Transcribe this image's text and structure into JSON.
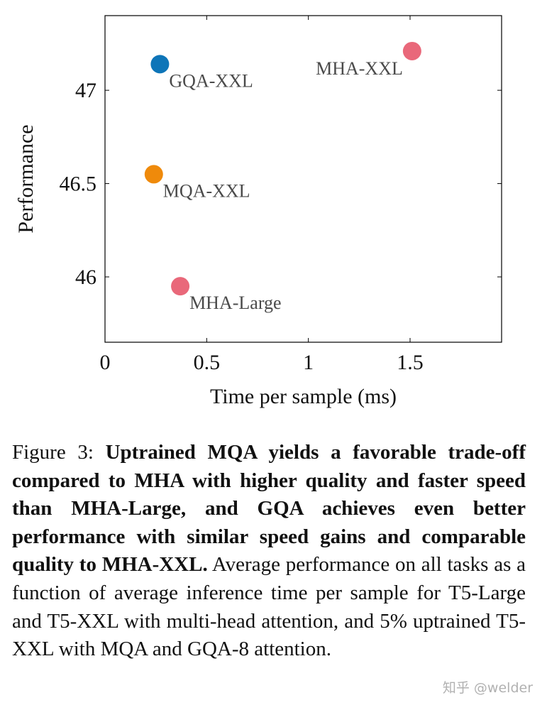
{
  "chart_data": {
    "type": "scatter",
    "xlabel": "Time per sample (ms)",
    "ylabel": "Performance",
    "xlim": [
      0,
      1.95
    ],
    "ylim": [
      45.65,
      47.4
    ],
    "xticks": [
      0,
      0.5,
      1,
      1.5
    ],
    "xtick_labels": [
      "0",
      "0.5",
      "1",
      "1.5"
    ],
    "yticks": [
      46,
      46.5,
      47
    ],
    "ytick_labels": [
      "46",
      "46.5",
      "47"
    ],
    "grid": false,
    "points": [
      {
        "label": "MHA-XXL",
        "x": 1.51,
        "y": 47.21,
        "color": "#e9687a",
        "label_side": "left"
      },
      {
        "label": "GQA-XXL",
        "x": 0.27,
        "y": 47.14,
        "color": "#0e75b8",
        "label_side": "right"
      },
      {
        "label": "MQA-XXL",
        "x": 0.24,
        "y": 46.55,
        "color": "#ef8a0b",
        "label_side": "right"
      },
      {
        "label": "MHA-Large",
        "x": 0.37,
        "y": 45.95,
        "color": "#e9687a",
        "label_side": "right"
      }
    ]
  },
  "caption": {
    "prefix": "Figure 3: ",
    "bold": "Uptrained MQA yields a favorable trade-off compared to MHA with higher quality and faster speed than MHA-Large, and GQA achieves even better performance with similar speed gains and comparable quality to MHA-XXL.",
    "rest": " Average performance on all tasks as a function of average inference time per sample for T5-Large and T5-XXL with multi-head attention, and 5% uptrained T5-XXL with MQA and GQA-8 attention."
  },
  "watermark": "知乎 @welder"
}
